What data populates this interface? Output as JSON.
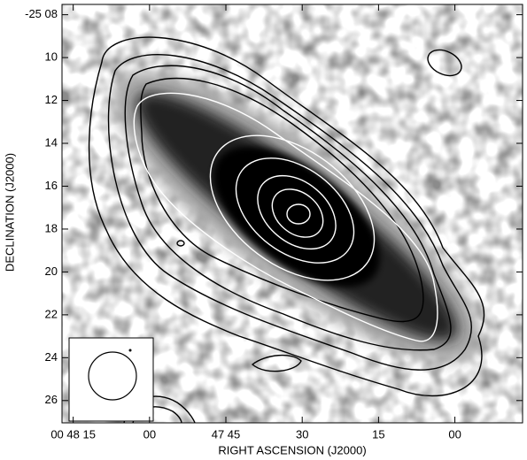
{
  "chart_data": {
    "type": "image",
    "xlabel": "RIGHT ASCENSION (J2000)",
    "ylabel": "DECLINATION (J2000)",
    "xlim": [
      77.2,
      -13.3
    ],
    "ylim": [
      7.52,
      27.04
    ],
    "xticks": [
      {
        "value": 75,
        "label": "00 48 15"
      },
      {
        "value": 60,
        "label": "00"
      },
      {
        "value": 45,
        "label": "47 45"
      },
      30,
      15,
      {
        "value": 0,
        "label": "00"
      }
    ],
    "yticks": [
      {
        "value": 8,
        "label": "-25 08"
      },
      10,
      12,
      14,
      16,
      18,
      20,
      22,
      24,
      26
    ]
  }
}
